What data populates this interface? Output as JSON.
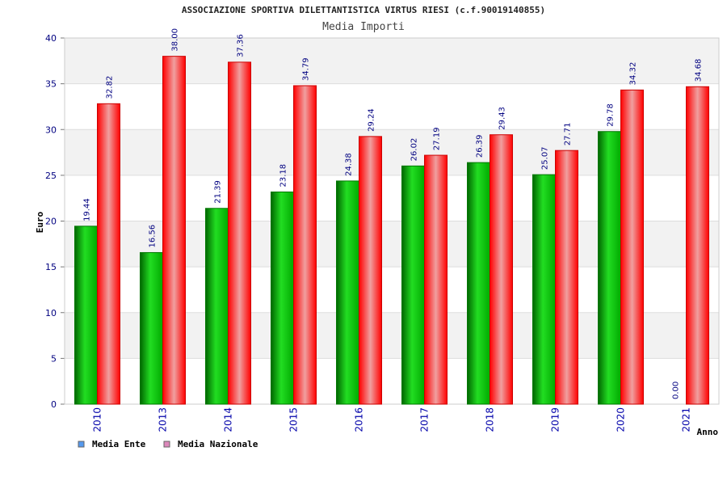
{
  "chart_data": {
    "type": "bar",
    "title": "ASSOCIAZIONE SPORTIVA DILETTANTISTICA VIRTUS RIESI (c.f.90019140855)",
    "subtitle": "Media Importi",
    "xlabel": "Anno",
    "ylabel": "Euro",
    "ylim": [
      0,
      40
    ],
    "yticks": [
      "0",
      "5",
      "10",
      "15",
      "20",
      "25",
      "30",
      "35",
      "40"
    ],
    "grid": true,
    "legend_position": "bottom-left",
    "categories": [
      "2010",
      "2013",
      "2014",
      "2015",
      "2016",
      "2017",
      "2018",
      "2019",
      "2020",
      "2021"
    ],
    "series": [
      {
        "name": "Media Ente",
        "color": "#00aa00",
        "legend_color": "#5599ee",
        "values": [
          19.44,
          16.56,
          21.39,
          23.18,
          24.38,
          26.02,
          26.39,
          25.07,
          29.78,
          0.0
        ],
        "labels": [
          "19.44",
          "16.56",
          "21.39",
          "23.18",
          "24.38",
          "26.02",
          "26.39",
          "25.07",
          "29.78",
          "0.00"
        ]
      },
      {
        "name": "Media Nazionale",
        "color": "#ee1111",
        "legend_color": "#dd88bb",
        "values": [
          32.82,
          38.0,
          37.36,
          34.79,
          29.24,
          27.19,
          29.43,
          27.71,
          34.32,
          34.68
        ],
        "labels": [
          "32.82",
          "38.00",
          "37.36",
          "34.79",
          "29.24",
          "27.19",
          "29.43",
          "27.71",
          "34.32",
          "34.68"
        ]
      }
    ]
  }
}
